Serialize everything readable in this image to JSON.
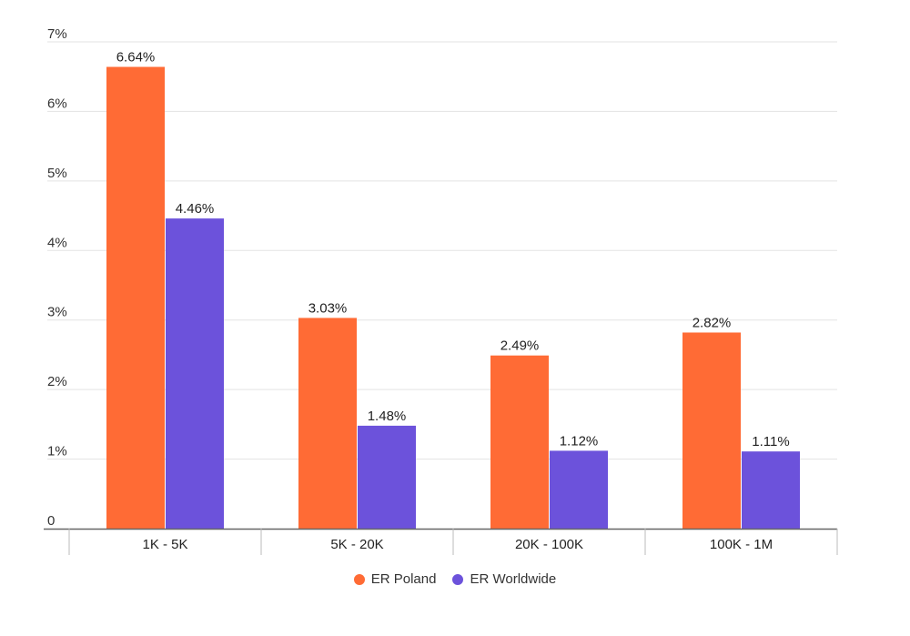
{
  "chart_data": {
    "type": "bar",
    "title": "",
    "xlabel": "",
    "ylabel": "",
    "categories": [
      "1K - 5K",
      "5K - 20K",
      "20K - 100K",
      "100K - 1M"
    ],
    "series": [
      {
        "name": "ER Poland",
        "values": [
          6.64,
          3.03,
          2.49,
          2.82
        ],
        "labels": [
          "6.64%",
          "3.03%",
          "2.49%",
          "2.82%"
        ],
        "color": "#ff6b35"
      },
      {
        "name": "ER Worldwide",
        "values": [
          4.46,
          1.48,
          1.12,
          1.11
        ],
        "labels": [
          "4.46%",
          "1.48%",
          "1.12%",
          "1.11%"
        ],
        "color": "#6c52db"
      }
    ],
    "ylim": [
      0,
      7
    ],
    "yticks": [
      {
        "value": 0,
        "label": "0"
      },
      {
        "value": 1,
        "label": "1%"
      },
      {
        "value": 2,
        "label": "2%"
      },
      {
        "value": 3,
        "label": "3%"
      },
      {
        "value": 4,
        "label": "4%"
      },
      {
        "value": 5,
        "label": "5%"
      },
      {
        "value": 6,
        "label": "6%"
      },
      {
        "value": 7,
        "label": "7%"
      }
    ],
    "grid": true,
    "legend_position": "bottom-center"
  }
}
